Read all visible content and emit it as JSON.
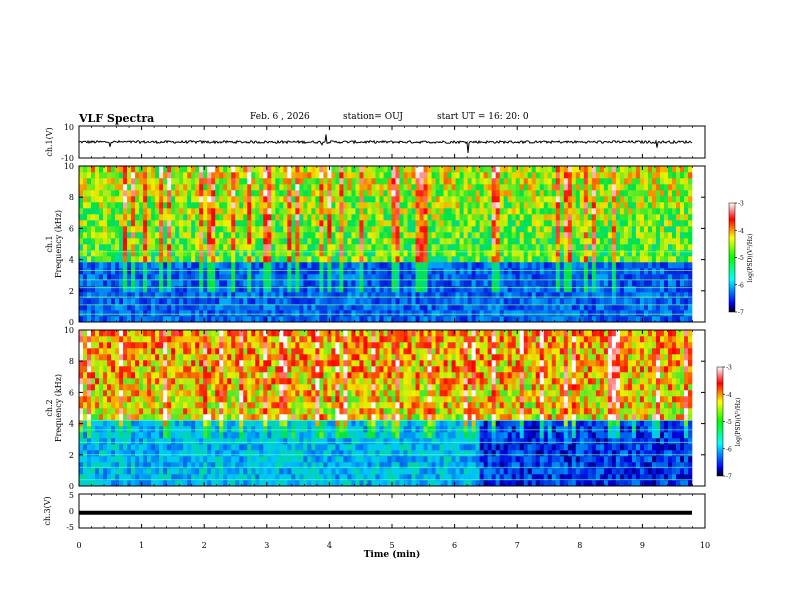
{
  "header": {
    "title": "VLF Spectra",
    "date": "Feb. 6  , 2026",
    "station": "station= OUJ",
    "start_time": "start  UT  =   16: 20: 0"
  },
  "colors": {
    "colormap": [
      "#000080",
      "#0000ff",
      "#0080ff",
      "#00ffff",
      "#00ff80",
      "#80ff00",
      "#ffff00",
      "#ff8000",
      "#ff0000",
      "#ffffff"
    ]
  },
  "chart_data": [
    {
      "type": "line",
      "ylabel": "ch.1(V)",
      "ylim": [
        -10,
        10
      ],
      "yticks": [
        "10",
        "-10"
      ],
      "description_level": 0
    },
    {
      "type": "heatmap",
      "ylabel_line1": "ch.1",
      "ylabel_line2": "Frequency  (kHz)",
      "ylim": [
        0,
        10
      ],
      "yticks": [
        "0",
        "2",
        "4",
        "6",
        "8",
        "10"
      ],
      "colorbar": {
        "label": "log(PSD)(V²/Hz)",
        "range": [
          -7,
          -3
        ],
        "ticks": [
          "-3",
          "-4",
          "-5",
          "-6",
          "-7"
        ]
      }
    },
    {
      "type": "heatmap",
      "ylabel_line1": "ch.2",
      "ylabel_line2": "Frequency  (kHz)",
      "ylim": [
        0,
        10
      ],
      "yticks": [
        "0",
        "2",
        "4",
        "6",
        "8",
        "10"
      ],
      "colorbar": {
        "label": "log(PSD)(V²/Hz)",
        "range": [
          -7,
          -3
        ],
        "ticks": [
          "-3",
          "-4",
          "-5",
          "-6",
          "-7"
        ]
      }
    },
    {
      "type": "line",
      "ylabel": "ch.3(V)",
      "ylim": [
        -5,
        5
      ],
      "yticks": [
        "5",
        "0",
        "-5"
      ],
      "level": -0.5
    }
  ],
  "xaxis": {
    "label": "Time  (min)",
    "range": [
      0,
      10
    ],
    "ticks": [
      "0",
      "1",
      "2",
      "3",
      "4",
      "5",
      "6",
      "7",
      "8",
      "9",
      "10"
    ]
  }
}
